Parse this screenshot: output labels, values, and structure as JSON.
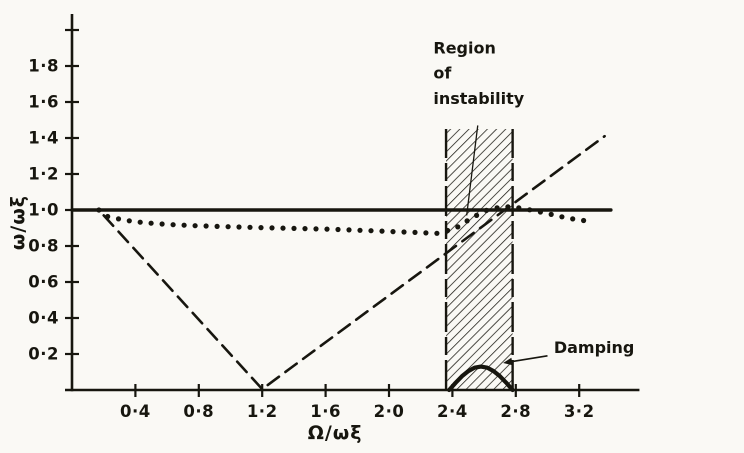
{
  "figure": {
    "background": "#faf9f5",
    "ink": "#17160f",
    "description": "Scanned line chart of frequency ratio versus speed ratio showing a hatched region of instability and a damping curve"
  },
  "chart_data": {
    "type": "line",
    "title": "",
    "xlabel": "Ω/ωξ",
    "ylabel": "ω/ωξ",
    "xlim": [
      0,
      3.58
    ],
    "ylim": [
      0,
      2.0
    ],
    "grid": false,
    "legend": "none",
    "xticks": {
      "values": [
        0.4,
        0.8,
        1.2,
        1.6,
        2.0,
        2.4,
        2.8,
        3.2
      ],
      "labels": [
        "0·4",
        "0·8",
        "1·2",
        "1·6",
        "2·0",
        "2·4",
        "2·8",
        "3·2"
      ]
    },
    "yticks": {
      "values": [
        0.2,
        0.4,
        0.6,
        0.8,
        1.0,
        1.2,
        1.4,
        1.6,
        1.8,
        2.0
      ],
      "labels": [
        "0·2",
        "0·4",
        "0·6",
        "0·8",
        "1·0",
        "1·2",
        "1·4",
        "1·6",
        "1·8",
        ""
      ]
    },
    "series": [
      {
        "name": "unity-frequency-line",
        "style": "solid",
        "width": 3.4,
        "points": [
          [
            0.0,
            1.0
          ],
          [
            3.4,
            1.0
          ]
        ]
      },
      {
        "name": "whirl-frequency-dotted",
        "style": "dots",
        "dot_radius": 2.6,
        "dot_gap": 11,
        "points": [
          [
            0.17,
            1.0
          ],
          [
            0.22,
            0.965
          ],
          [
            0.32,
            0.945
          ],
          [
            0.45,
            0.93
          ],
          [
            0.6,
            0.92
          ],
          [
            0.8,
            0.912
          ],
          [
            1.0,
            0.907
          ],
          [
            1.2,
            0.902
          ],
          [
            1.4,
            0.898
          ],
          [
            1.6,
            0.894
          ],
          [
            1.8,
            0.888
          ],
          [
            2.0,
            0.881
          ],
          [
            2.15,
            0.876
          ],
          [
            2.3,
            0.87
          ],
          [
            2.42,
            0.898
          ],
          [
            2.52,
            0.955
          ],
          [
            2.62,
            1.0
          ],
          [
            2.72,
            1.02
          ],
          [
            2.82,
            1.012
          ],
          [
            2.92,
            0.996
          ],
          [
            3.02,
            0.976
          ],
          [
            3.14,
            0.953
          ],
          [
            3.28,
            0.935
          ]
        ]
      },
      {
        "name": "rotor-speed-dashed",
        "style": "dashed",
        "width": 2.6,
        "dash": "14 8",
        "points": [
          [
            0.2,
            0.97
          ],
          [
            1.2,
            0.005
          ],
          [
            3.36,
            1.41
          ]
        ]
      },
      {
        "name": "damping-curve",
        "style": "solid",
        "width": 4.2,
        "points": [
          [
            2.38,
            0
          ],
          [
            2.42,
            0.04
          ],
          [
            2.46,
            0.076
          ],
          [
            2.5,
            0.105
          ],
          [
            2.54,
            0.124
          ],
          [
            2.58,
            0.13
          ],
          [
            2.62,
            0.124
          ],
          [
            2.66,
            0.105
          ],
          [
            2.7,
            0.076
          ],
          [
            2.74,
            0.04
          ],
          [
            2.78,
            0
          ]
        ]
      }
    ],
    "instability_band": {
      "label": "Region of instability",
      "x1": 2.36,
      "x2": 2.78,
      "y1": 0,
      "y2": 1.45,
      "edge_dash": "30 5 18 5"
    },
    "annotations": {
      "region_label": {
        "lines": [
          "Region",
          "of",
          "instability"
        ],
        "x": 2.28,
        "line_y": [
          1.87,
          1.73,
          1.59
        ]
      },
      "region_leader": {
        "from": [
          2.56,
          1.47
        ],
        "to": [
          2.49,
          0.97
        ]
      },
      "damping_label": {
        "text": "Damping",
        "x": 3.04,
        "y": 0.205
      },
      "damping_arrow": {
        "from": [
          3.0,
          0.19
        ],
        "to": [
          2.72,
          0.15
        ]
      }
    }
  }
}
